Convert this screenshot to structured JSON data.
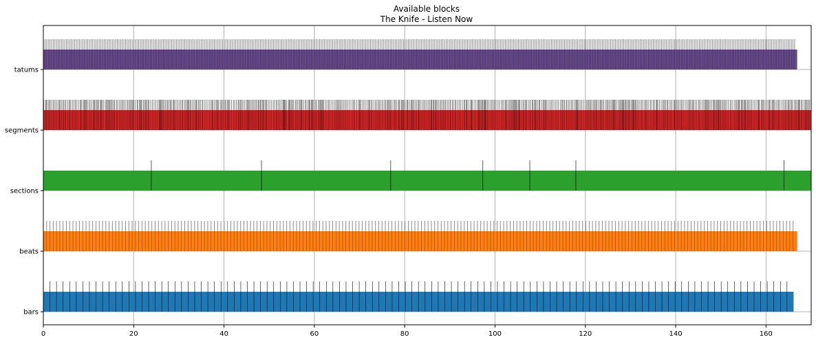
{
  "chart_data": {
    "type": "bar",
    "title": "Available blocks",
    "subtitle": "The Knife - Listen Now",
    "xlabel": "",
    "ylabel": "",
    "xlim": [
      0,
      170
    ],
    "xticks": [
      0,
      20,
      40,
      60,
      80,
      100,
      120,
      140,
      160
    ],
    "grid": true,
    "categories": [
      "bars",
      "beats",
      "sections",
      "segments",
      "tatums"
    ],
    "series": [
      {
        "category": "bars",
        "color": "#1f77b4",
        "start": 0,
        "end": 166.1,
        "interval": 1.457,
        "count": 114
      },
      {
        "category": "beats",
        "color": "#ff7f0e",
        "start": 0,
        "end": 166.9,
        "interval": 0.728,
        "count": 229
      },
      {
        "category": "sections",
        "color": "#2ca02c",
        "boundaries": [
          0,
          23.9,
          48.3,
          76.9,
          97.3,
          107.7,
          117.9,
          164.0
        ],
        "end": 170
      },
      {
        "category": "segments",
        "color": "#d62728",
        "start": 0,
        "end": 170,
        "count": 700
      },
      {
        "category": "tatums",
        "color": "#6a4c8f",
        "start": 0,
        "end": 166.9,
        "interval": 0.364,
        "count": 458
      }
    ]
  }
}
